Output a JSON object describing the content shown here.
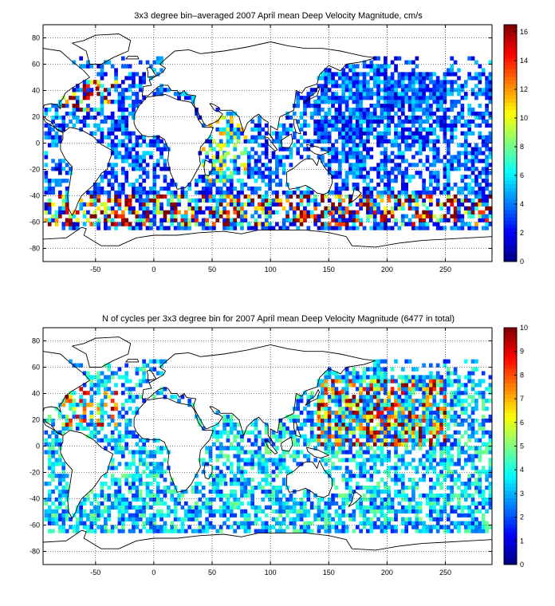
{
  "figure": {
    "panels": [
      {
        "title": "3x3 degree bin–averaged 2007 April mean Deep Velocity Magnitude, cm/s",
        "colorbar_ticks": [
          "0",
          "2",
          "4",
          "6",
          "8",
          "10",
          "12",
          "14",
          "16"
        ]
      },
      {
        "title": "N of cycles per 3x3 degree bin for 2007 April mean Deep Velocity Magnitude (6477 in total)",
        "colorbar_ticks": [
          "0",
          "1",
          "2",
          "3",
          "4",
          "5",
          "6",
          "7",
          "8",
          "9",
          "10"
        ]
      }
    ],
    "x_ticks": [
      "-50",
      "0",
      "50",
      "100",
      "150",
      "200",
      "250"
    ],
    "y_ticks": [
      "80",
      "60",
      "40",
      "20",
      "0",
      "-20",
      "-40",
      "-60",
      "-80"
    ]
  },
  "chart_data": [
    {
      "type": "heatmap",
      "title": "3x3 degree bin–averaged 2007 April mean Deep Velocity Magnitude, cm/s",
      "xlabel": "",
      "ylabel": "",
      "xlim": [
        -95,
        290
      ],
      "ylim": [
        -90,
        90
      ],
      "bin_size_deg": 3,
      "colormap": "jet",
      "clim": [
        0,
        16.5
      ],
      "colorbar_ticks": [
        0,
        2,
        4,
        6,
        8,
        10,
        12,
        14,
        16
      ],
      "x_ticks": [
        -50,
        0,
        50,
        100,
        150,
        200,
        250
      ],
      "y_ticks": [
        -80,
        -60,
        -40,
        -20,
        0,
        20,
        40,
        60,
        80
      ],
      "grid": true,
      "overlay": "coastlines",
      "sample_cells": [
        {
          "lon": -50,
          "lat": 40,
          "value": 16
        },
        {
          "lon": -40,
          "lat": -45,
          "value": 15
        },
        {
          "lon": 200,
          "lat": 40,
          "value": 2
        },
        {
          "lon": 60,
          "lat": -10,
          "value": 9
        },
        {
          "lon": 150,
          "lat": -55,
          "value": 14
        },
        {
          "lon": 240,
          "lat": -30,
          "value": 3
        }
      ]
    },
    {
      "type": "heatmap",
      "title": "N of cycles per 3x3 degree bin for 2007 April mean Deep Velocity Magnitude (6477 in total)",
      "xlabel": "",
      "ylabel": "",
      "xlim": [
        -95,
        290
      ],
      "ylim": [
        -90,
        90
      ],
      "bin_size_deg": 3,
      "colormap": "jet",
      "clim": [
        0,
        10
      ],
      "colorbar_ticks": [
        0,
        1,
        2,
        3,
        4,
        5,
        6,
        7,
        8,
        9,
        10
      ],
      "x_ticks": [
        -50,
        0,
        50,
        100,
        150,
        200,
        250
      ],
      "y_ticks": [
        -80,
        -60,
        -40,
        -20,
        0,
        20,
        40,
        60,
        80
      ],
      "grid": true,
      "overlay": "coastlines",
      "total_cycles": 6477,
      "sample_cells": [
        {
          "lon": 200,
          "lat": 30,
          "value": 4
        },
        {
          "lon": 160,
          "lat": 40,
          "value": 8
        },
        {
          "lon": -55,
          "lat": 30,
          "value": 7
        },
        {
          "lon": 240,
          "lat": 20,
          "value": 3
        },
        {
          "lon": 60,
          "lat": -30,
          "value": 2
        }
      ]
    }
  ]
}
